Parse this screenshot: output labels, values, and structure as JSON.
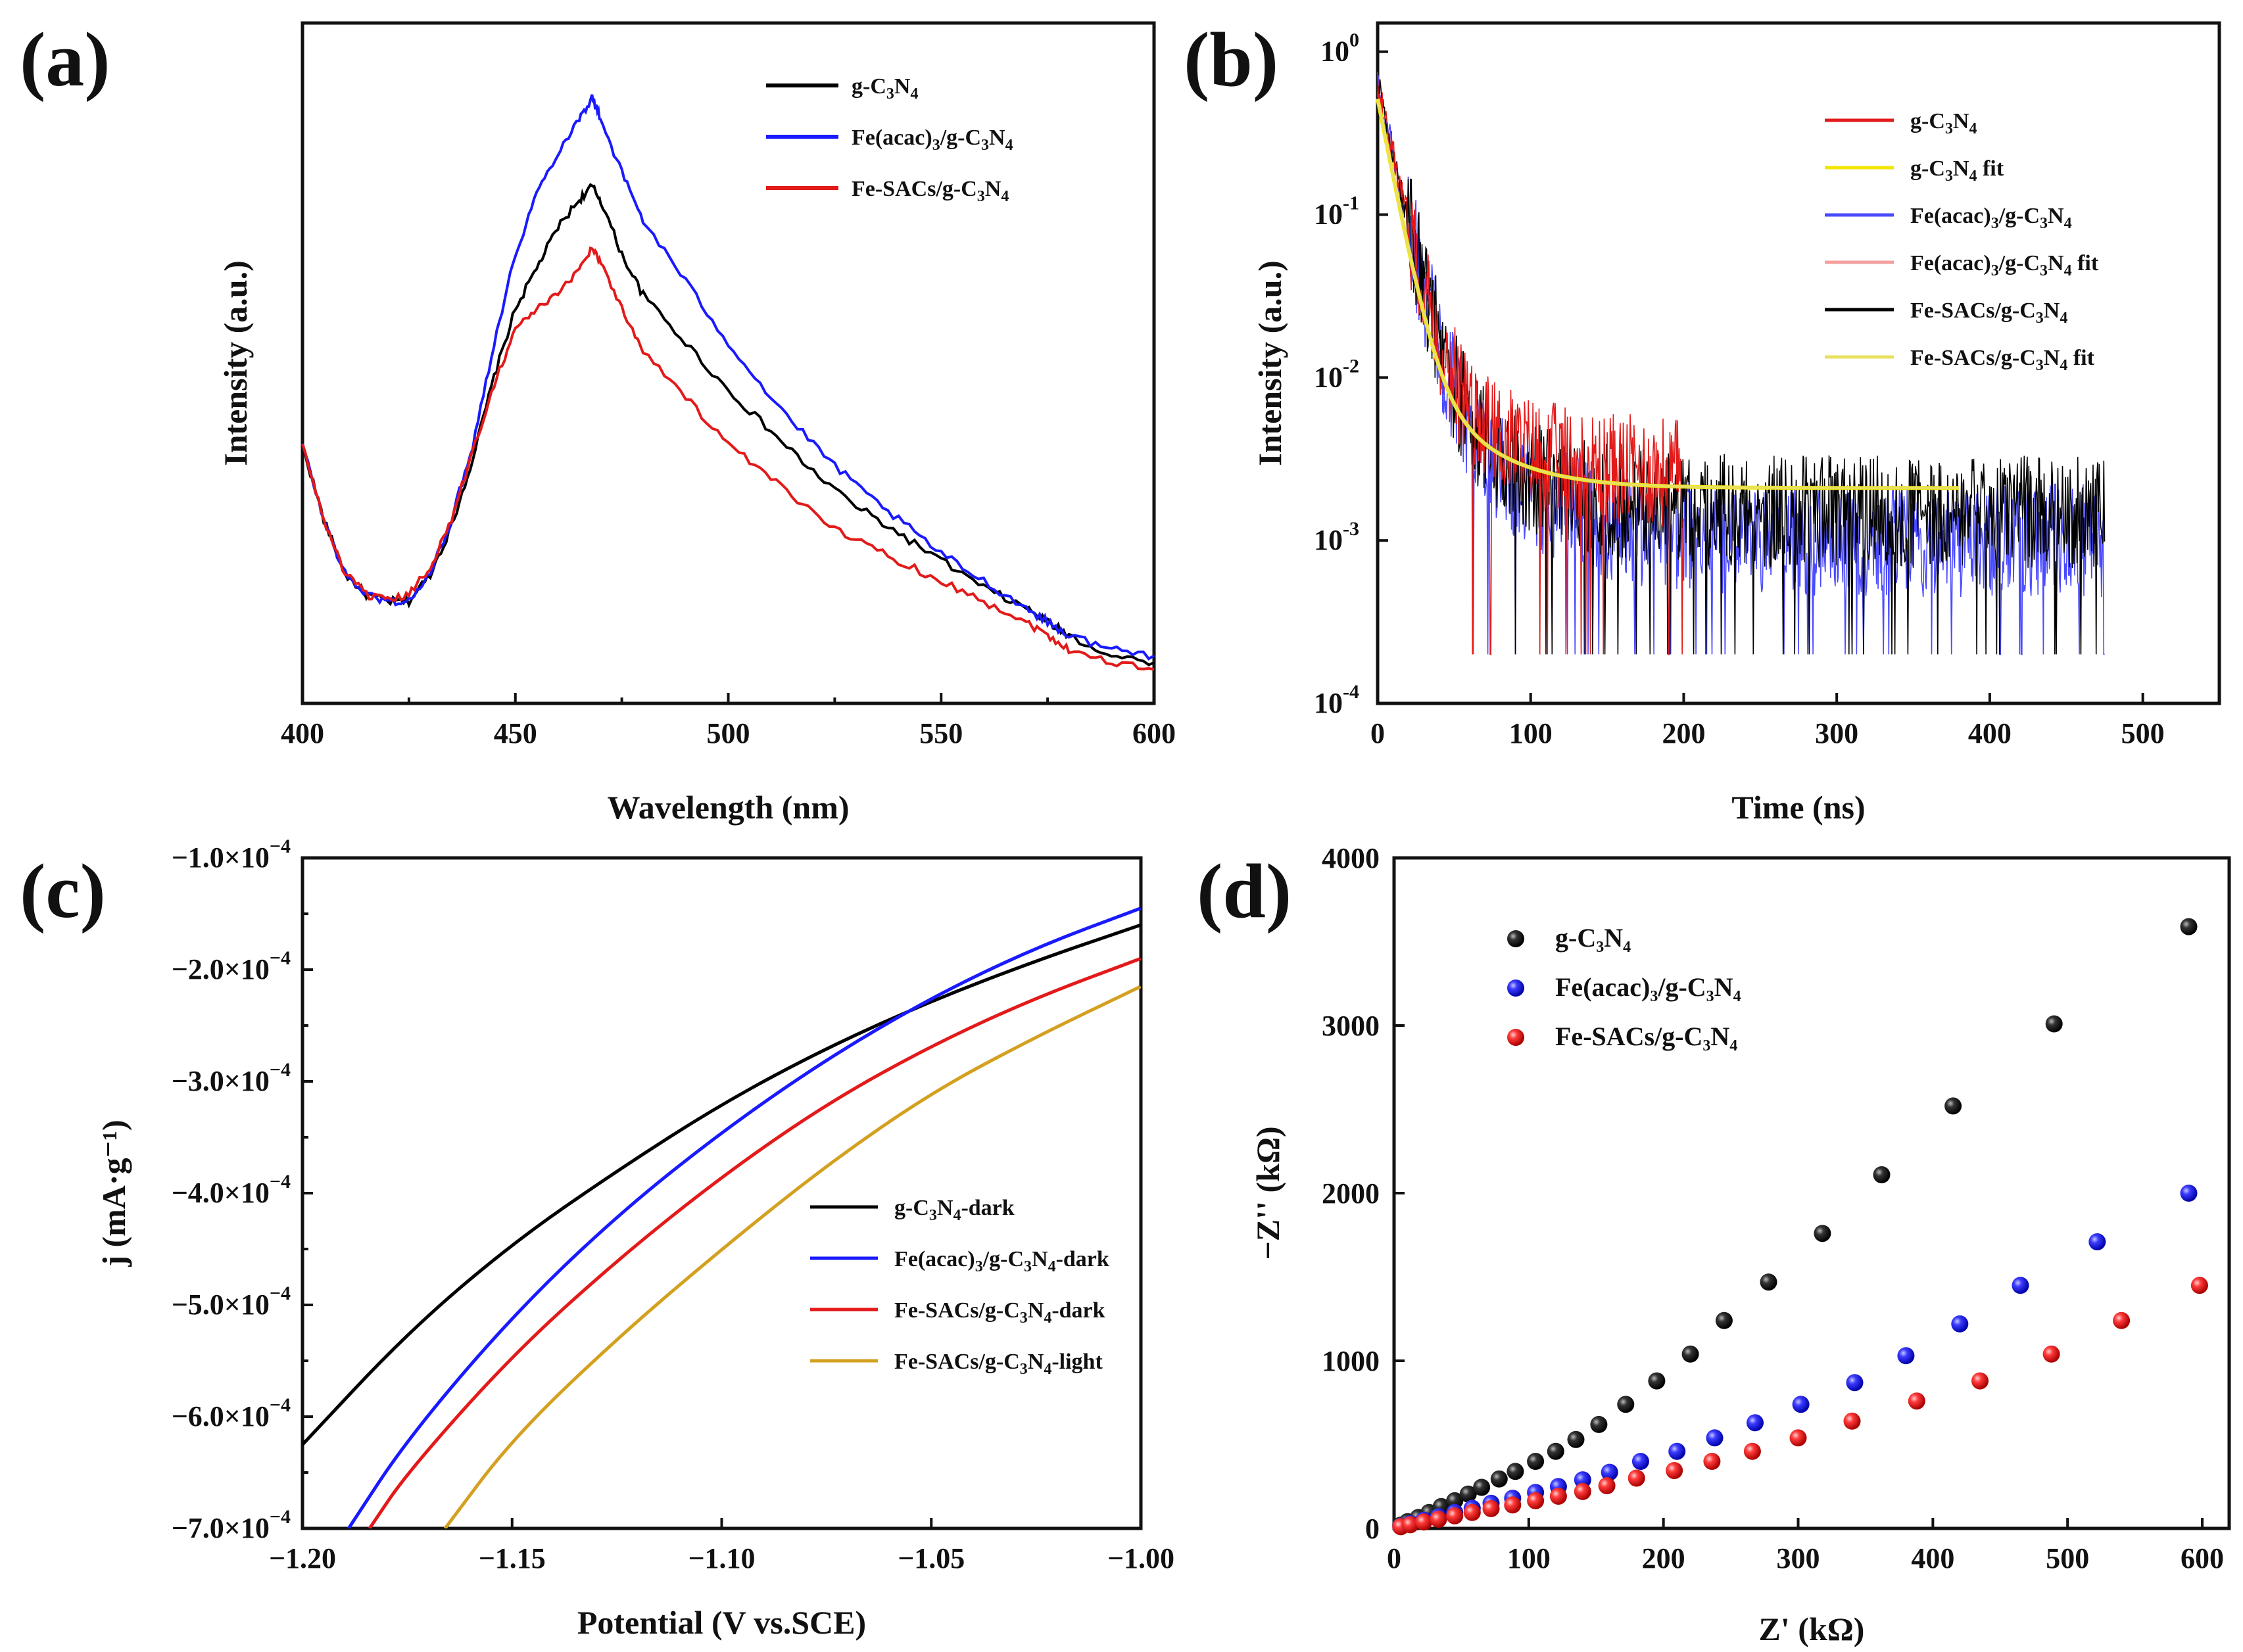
{
  "panels": {
    "a": {
      "letter": "(a)",
      "xlabel": "Wavelength (nm)",
      "ylabel": "Intensity (a.u.)",
      "xticks": [
        "400",
        "450",
        "500",
        "550",
        "600"
      ],
      "legend": [
        {
          "pre": "g-C",
          "s1": "3",
          "mid": "N",
          "s2": "4",
          "post": "",
          "color": "#000000"
        },
        {
          "pre": "Fe(acac)",
          "s1": "3",
          "mid": "/g-C",
          "s2": "3",
          "mid2": "N",
          "s3": "4",
          "post": "",
          "color": "#1a1aff"
        },
        {
          "pre": "Fe-SACs/g-C",
          "s1": "3",
          "mid": "N",
          "s2": "4",
          "post": "",
          "color": "#e31a1a"
        }
      ]
    },
    "b": {
      "letter": "(b)",
      "xlabel": "Time (ns)",
      "ylabel": "Intensity (a.u.)",
      "xticks": [
        "0",
        "100",
        "200",
        "300",
        "400",
        "500"
      ],
      "yticks": [
        {
          "base": "10",
          "exp": "0"
        },
        {
          "base": "10",
          "exp": "-1"
        },
        {
          "base": "10",
          "exp": "-2"
        },
        {
          "base": "10",
          "exp": "-3"
        },
        {
          "base": "10",
          "exp": "-4"
        }
      ],
      "legend": [
        {
          "pre": "g-C",
          "s1": "3",
          "mid": "N",
          "s2": "4",
          "post": "",
          "color": "#e31a1a"
        },
        {
          "pre": "g-C",
          "s1": "3",
          "mid": "N",
          "s2": "4",
          "post": " fit",
          "color": "#f2e600"
        },
        {
          "pre": "Fe(acac)",
          "s1": "3",
          "mid": "/g-C",
          "s2": "3",
          "mid2": "N",
          "s3": "4",
          "post": "",
          "color": "#4a4aff"
        },
        {
          "pre": "Fe(acac)",
          "s1": "3",
          "mid": "/g-C",
          "s2": "3",
          "mid2": "N",
          "s3": "4",
          "post": " fit",
          "color": "#f4a0a0"
        },
        {
          "pre": "Fe-SACs/g-C",
          "s1": "3",
          "mid": "N",
          "s2": "4",
          "post": "",
          "color": "#000000"
        },
        {
          "pre": "Fe-SACs/g-C",
          "s1": "3",
          "mid": "N",
          "s2": "4",
          "post": " fit",
          "color": "#e8e060"
        }
      ]
    },
    "c": {
      "letter": "(c)",
      "xlabel": "Potential (V vs.SCE)",
      "ylabel": "j (mA·g⁻¹)",
      "xticks": [
        "−1.20",
        "−1.15",
        "−1.10",
        "−1.05",
        "−1.00"
      ],
      "yticks": [
        {
          "mant": "−1.0×10",
          "exp": "−4"
        },
        {
          "mant": "−2.0×10",
          "exp": "−4"
        },
        {
          "mant": "−3.0×10",
          "exp": "−4"
        },
        {
          "mant": "−4.0×10",
          "exp": "−4"
        },
        {
          "mant": "−5.0×10",
          "exp": "−4"
        },
        {
          "mant": "−6.0×10",
          "exp": "−4"
        },
        {
          "mant": "−7.0×10",
          "exp": "−4"
        }
      ],
      "legend": [
        {
          "pre": "g-C",
          "s1": "3",
          "mid": "N",
          "s2": "4",
          "post": "-dark",
          "color": "#000000"
        },
        {
          "pre": "Fe(acac)",
          "s1": "3",
          "mid": "/g-C",
          "s2": "3",
          "mid2": "N",
          "s3": "4",
          "post": "-dark",
          "color": "#1a1aff"
        },
        {
          "pre": "Fe-SACs/g-C",
          "s1": "3",
          "mid": "N",
          "s2": "4",
          "post": "-dark",
          "color": "#e31a1a"
        },
        {
          "pre": "Fe-SACs/g-C",
          "s1": "3",
          "mid": "N",
          "s2": "4",
          "post": "-light",
          "color": "#d4a020"
        }
      ]
    },
    "d": {
      "letter": "(d)",
      "xlabel": "Z' (kΩ)",
      "ylabel": "−Z'' (kΩ)",
      "xticks": [
        "0",
        "100",
        "200",
        "300",
        "400",
        "500",
        "600"
      ],
      "yticks": [
        "0",
        "1000",
        "2000",
        "3000",
        "4000"
      ],
      "legend": [
        {
          "pre": "g-C",
          "s1": "3",
          "mid": "N",
          "s2": "4",
          "post": "",
          "color": "#111111"
        },
        {
          "pre": "Fe(acac)",
          "s1": "3",
          "mid": "/g-C",
          "s2": "3",
          "mid2": "N",
          "s3": "4",
          "post": "",
          "color": "#2a2aff"
        },
        {
          "pre": "Fe-SACs/g-C",
          "s1": "3",
          "mid": "N",
          "s2": "4",
          "post": "",
          "color": "#ee2222"
        }
      ]
    }
  },
  "chart_data": [
    {
      "type": "line",
      "panel": "a",
      "xlabel": "Wavelength (nm)",
      "ylabel": "Intensity (a.u.)",
      "xlim": [
        400,
        600
      ],
      "ylim": [
        0,
        1
      ],
      "y_ticks_shown": false,
      "series": [
        {
          "name": "g-C3N4",
          "color": "#000000",
          "x": [
            400,
            405,
            410,
            415,
            420,
            425,
            430,
            435,
            440,
            445,
            450,
            455,
            460,
            465,
            468,
            470,
            475,
            480,
            490,
            500,
            510,
            520,
            530,
            540,
            550,
            560,
            570,
            575,
            580,
            590,
            600
          ],
          "y": [
            0.38,
            0.27,
            0.19,
            0.16,
            0.15,
            0.15,
            0.19,
            0.26,
            0.36,
            0.48,
            0.58,
            0.64,
            0.7,
            0.74,
            0.76,
            0.74,
            0.66,
            0.6,
            0.53,
            0.46,
            0.4,
            0.34,
            0.29,
            0.25,
            0.21,
            0.17,
            0.14,
            0.12,
            0.1,
            0.07,
            0.06
          ]
        },
        {
          "name": "Fe(acac)3/g-C3N4",
          "color": "#1a1aff",
          "x": [
            400,
            405,
            410,
            415,
            420,
            425,
            430,
            435,
            440,
            445,
            450,
            455,
            460,
            465,
            468,
            470,
            475,
            480,
            490,
            500,
            510,
            520,
            530,
            540,
            550,
            560,
            570,
            575,
            580,
            590,
            600
          ],
          "y": [
            0.38,
            0.27,
            0.19,
            0.16,
            0.15,
            0.15,
            0.19,
            0.27,
            0.38,
            0.53,
            0.66,
            0.75,
            0.81,
            0.86,
            0.89,
            0.86,
            0.78,
            0.71,
            0.62,
            0.53,
            0.45,
            0.38,
            0.32,
            0.27,
            0.22,
            0.18,
            0.14,
            0.12,
            0.1,
            0.08,
            0.07
          ]
        },
        {
          "name": "Fe-SACs/g-C3N4",
          "color": "#e31a1a",
          "x": [
            400,
            405,
            410,
            415,
            420,
            425,
            430,
            435,
            440,
            445,
            450,
            455,
            460,
            465,
            468,
            470,
            475,
            480,
            490,
            500,
            510,
            520,
            530,
            540,
            550,
            560,
            570,
            575,
            580,
            590,
            600
          ],
          "y": [
            0.38,
            0.27,
            0.19,
            0.16,
            0.15,
            0.16,
            0.2,
            0.27,
            0.37,
            0.47,
            0.55,
            0.58,
            0.6,
            0.64,
            0.67,
            0.65,
            0.58,
            0.52,
            0.45,
            0.38,
            0.33,
            0.28,
            0.24,
            0.21,
            0.18,
            0.15,
            0.12,
            0.1,
            0.08,
            0.06,
            0.05
          ]
        }
      ]
    },
    {
      "type": "line",
      "panel": "b",
      "xlabel": "Time (ns)",
      "ylabel": "Intensity (a.u.)",
      "yscale": "log",
      "xlim": [
        0,
        550
      ],
      "ylim": [
        0.0001,
        1.5
      ],
      "series": [
        {
          "name": "g-C3N4",
          "color": "#e31a1a",
          "t_end": 200,
          "decay": {
            "amplitude": 0.6,
            "tau": 10,
            "baseline": 0.0025
          }
        },
        {
          "name": "Fe(acac)3/g-C3N4",
          "color": "#4a4aff",
          "t_end": 475,
          "decay": {
            "amplitude": 0.6,
            "tau": 10,
            "baseline": 0.001
          }
        },
        {
          "name": "Fe-SACs/g-C3N4",
          "color": "#000000",
          "t_end": 475,
          "decay": {
            "amplitude": 0.6,
            "tau": 10,
            "baseline": 0.0015
          }
        },
        {
          "name": "g-C3N4 fit",
          "color": "#f2e600",
          "t_end": 380,
          "x": [
            0,
            5,
            10,
            20,
            30,
            40,
            60,
            80,
            100,
            140,
            200,
            300,
            380
          ],
          "y": [
            0.5,
            0.18,
            0.065,
            0.018,
            0.0085,
            0.0055,
            0.0035,
            0.0028,
            0.0025,
            0.0022,
            0.0021,
            0.0021,
            0.0021
          ]
        },
        {
          "name": "Fe-SACs/g-C3N4 fit",
          "color": "#e8e060",
          "t_end": 380,
          "x": [
            0,
            5,
            10,
            20,
            30,
            40,
            60,
            80,
            100,
            140,
            200,
            300,
            380
          ],
          "y": [
            0.5,
            0.18,
            0.065,
            0.018,
            0.0085,
            0.0055,
            0.0035,
            0.0028,
            0.0025,
            0.0022,
            0.0021,
            0.0021,
            0.0021
          ]
        }
      ]
    },
    {
      "type": "line",
      "panel": "c",
      "xlabel": "Potential (V vs.SCE)",
      "ylabel": "j (mA·g-1)",
      "xlim": [
        -1.2,
        -1.0
      ],
      "ylim": [
        -0.0007,
        -0.0001
      ],
      "series": [
        {
          "name": "g-C3N4-dark",
          "color": "#000000",
          "x": [
            -1.2,
            -1.175,
            -1.15,
            -1.125,
            -1.1,
            -1.075,
            -1.05,
            -1.025,
            -1.0
          ],
          "y": [
            -0.000625,
            -0.000525,
            -0.000445,
            -0.00038,
            -0.00032,
            -0.00027,
            -0.000228,
            -0.000192,
            -0.00016
          ]
        },
        {
          "name": "Fe(acac)3/g-C3N4-dark",
          "color": "#1a1aff",
          "x": [
            -1.189,
            -1.175,
            -1.15,
            -1.125,
            -1.1,
            -1.075,
            -1.05,
            -1.025,
            -1.0
          ],
          "y": [
            -0.0007,
            -0.00062,
            -0.00051,
            -0.00042,
            -0.000345,
            -0.00028,
            -0.000225,
            -0.00018,
            -0.000145
          ]
        },
        {
          "name": "Fe-SACs/g-C3N4-dark",
          "color": "#e31a1a",
          "x": [
            -1.184,
            -1.175,
            -1.15,
            -1.125,
            -1.1,
            -1.075,
            -1.05,
            -1.025,
            -1.0
          ],
          "y": [
            -0.0007,
            -0.00065,
            -0.000545,
            -0.00046,
            -0.000385,
            -0.00032,
            -0.000268,
            -0.000225,
            -0.00019
          ]
        },
        {
          "name": "Fe-SACs/g-C3N4-light",
          "color": "#d4a020",
          "x": [
            -1.166,
            -1.15,
            -1.125,
            -1.1,
            -1.075,
            -1.05,
            -1.025,
            -1.0
          ],
          "y": [
            -0.0007,
            -0.00062,
            -0.00053,
            -0.00045,
            -0.000375,
            -0.00031,
            -0.00026,
            -0.000215
          ]
        }
      ]
    },
    {
      "type": "scatter",
      "panel": "d",
      "xlabel": "Z' (kΩ)",
      "ylabel": "−Z'' (kΩ)",
      "xlim": [
        0,
        620
      ],
      "ylim": [
        0,
        4000
      ],
      "series": [
        {
          "name": "g-C3N4",
          "color": "#111111",
          "x": [
            5,
            10,
            18,
            26,
            35,
            45,
            55,
            65,
            78,
            90,
            105,
            120,
            135,
            152,
            172,
            195,
            220,
            245,
            278,
            318,
            362,
            415,
            490,
            590
          ],
          "y": [
            20,
            40,
            65,
            95,
            130,
            165,
            205,
            245,
            295,
            340,
            400,
            460,
            530,
            620,
            740,
            880,
            1040,
            1240,
            1470,
            1760,
            2110,
            2520,
            3010,
            3590
          ]
        },
        {
          "name": "Fe(acac)3/g-C3N4",
          "color": "#2a2aff",
          "x": [
            5,
            12,
            22,
            33,
            45,
            58,
            72,
            88,
            105,
            122,
            140,
            160,
            183,
            210,
            238,
            268,
            302,
            342,
            380,
            420,
            465,
            522,
            590
          ],
          "y": [
            12,
            28,
            48,
            70,
            95,
            120,
            150,
            180,
            215,
            250,
            290,
            335,
            400,
            460,
            540,
            630,
            740,
            870,
            1030,
            1220,
            1450,
            1710,
            2000
          ]
        },
        {
          "name": "Fe-SACs/g-C3N4",
          "color": "#ee2222",
          "x": [
            5,
            12,
            22,
            33,
            45,
            58,
            72,
            88,
            105,
            122,
            140,
            158,
            180,
            208,
            236,
            266,
            300,
            340,
            388,
            435,
            488,
            540,
            598
          ],
          "y": [
            10,
            22,
            38,
            55,
            75,
            95,
            118,
            140,
            165,
            192,
            220,
            255,
            300,
            345,
            400,
            460,
            540,
            640,
            760,
            880,
            1040,
            1240,
            1450
          ]
        }
      ]
    }
  ]
}
